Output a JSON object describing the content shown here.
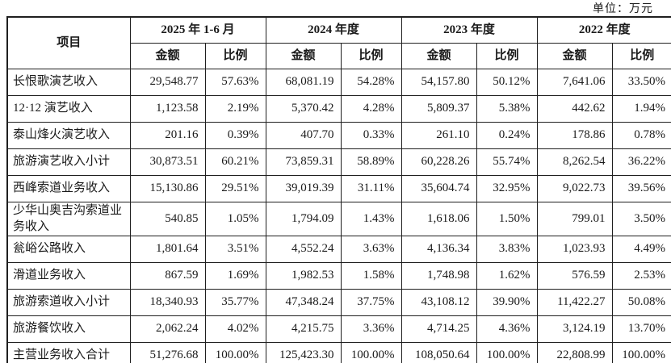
{
  "unit_label": "单位：万元",
  "table": {
    "item_header": "项目",
    "amount_label": "金额",
    "ratio_label": "比例",
    "period_groups": [
      "2025 年 1-6 月",
      "2024 年度",
      "2023 年度",
      "2022 年度"
    ],
    "rows": [
      {
        "item": "长恨歌演艺收入",
        "values": [
          "29,548.77",
          "57.63%",
          "68,081.19",
          "54.28%",
          "54,157.80",
          "50.12%",
          "7,641.06",
          "33.50%"
        ]
      },
      {
        "item": "12·12 演艺收入",
        "values": [
          "1,123.58",
          "2.19%",
          "5,370.42",
          "4.28%",
          "5,809.37",
          "5.38%",
          "442.62",
          "1.94%"
        ]
      },
      {
        "item": "泰山烽火演艺收入",
        "values": [
          "201.16",
          "0.39%",
          "407.70",
          "0.33%",
          "261.10",
          "0.24%",
          "178.86",
          "0.78%"
        ]
      },
      {
        "item": "旅游演艺收入小计",
        "values": [
          "30,873.51",
          "60.21%",
          "73,859.31",
          "58.89%",
          "60,228.26",
          "55.74%",
          "8,262.54",
          "36.22%"
        ]
      },
      {
        "item": "西峰索道业务收入",
        "values": [
          "15,130.86",
          "29.51%",
          "39,019.39",
          "31.11%",
          "35,604.74",
          "32.95%",
          "9,022.73",
          "39.56%"
        ]
      },
      {
        "item": "少华山奥吉沟索道业务收入",
        "values": [
          "540.85",
          "1.05%",
          "1,794.09",
          "1.43%",
          "1,618.06",
          "1.50%",
          "799.01",
          "3.50%"
        ]
      },
      {
        "item": "瓮峪公路收入",
        "values": [
          "1,801.64",
          "3.51%",
          "4,552.24",
          "3.63%",
          "4,136.34",
          "3.83%",
          "1,023.93",
          "4.49%"
        ]
      },
      {
        "item": "滑道业务收入",
        "values": [
          "867.59",
          "1.69%",
          "1,982.53",
          "1.58%",
          "1,748.98",
          "1.62%",
          "576.59",
          "2.53%"
        ]
      },
      {
        "item": "旅游索道收入小计",
        "values": [
          "18,340.93",
          "35.77%",
          "47,348.24",
          "37.75%",
          "43,108.12",
          "39.90%",
          "11,422.27",
          "50.08%"
        ]
      },
      {
        "item": "旅游餐饮收入",
        "values": [
          "2,062.24",
          "4.02%",
          "4,215.75",
          "3.36%",
          "4,714.25",
          "4.36%",
          "3,124.19",
          "13.70%"
        ]
      },
      {
        "item": "主营业务收入合计",
        "values": [
          "51,276.68",
          "100.00%",
          "125,423.30",
          "100.00%",
          "108,050.64",
          "100.00%",
          "22,808.99",
          "100.00%"
        ]
      }
    ]
  }
}
